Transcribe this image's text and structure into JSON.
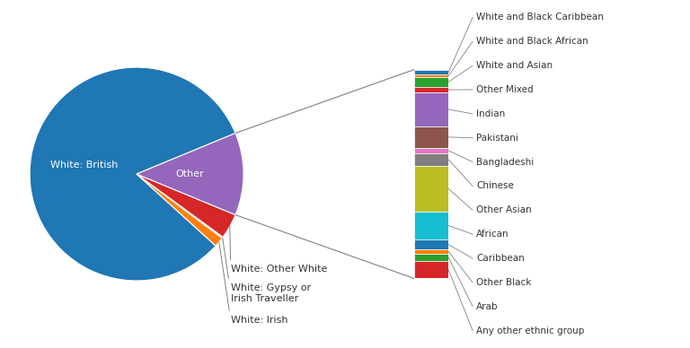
{
  "chart_data": [
    {
      "type": "pie",
      "categories": [
        "White: British",
        "White: Irish",
        "White: Gypsy or\nIrish Traveller",
        "White: Other White",
        "Other"
      ],
      "values": [
        82.0,
        1.5,
        0.2,
        3.8,
        12.5
      ]
    },
    {
      "type": "bar",
      "stacked": true,
      "tick_labels": false,
      "categories": [
        null
      ],
      "series": [
        {
          "name": "White and Black Caribbean",
          "values": [
            0.28
          ]
        },
        {
          "name": "White and Black African",
          "values": [
            0.12
          ]
        },
        {
          "name": "White and Asian",
          "values": [
            0.55
          ]
        },
        {
          "name": "Other Mixed",
          "values": [
            0.32
          ]
        },
        {
          "name": "Indian",
          "values": [
            1.85
          ]
        },
        {
          "name": "Pakistani",
          "values": [
            1.2
          ]
        },
        {
          "name": "Bangladeshi",
          "values": [
            0.28
          ]
        },
        {
          "name": "Chinese",
          "values": [
            0.72
          ]
        },
        {
          "name": "Other Asian",
          "values": [
            2.5
          ]
        },
        {
          "name": "African",
          "values": [
            1.55
          ]
        },
        {
          "name": "Caribbean",
          "values": [
            0.55
          ]
        },
        {
          "name": "Other Black",
          "values": [
            0.22
          ]
        },
        {
          "name": "Arab",
          "values": [
            0.42
          ]
        },
        {
          "name": "Any other ethnic group",
          "values": [
            0.95
          ]
        }
      ]
    }
  ]
}
